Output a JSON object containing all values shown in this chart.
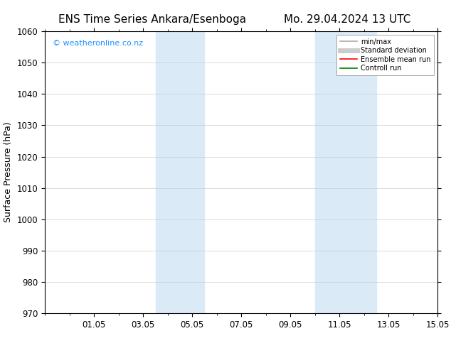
{
  "title_left": "ENS Time Series Ankara/Esenboga",
  "title_right": "Mo. 29.04.2024 13 UTC",
  "ylabel": "Surface Pressure (hPa)",
  "ylim": [
    970,
    1060
  ],
  "yticks": [
    970,
    980,
    990,
    1000,
    1010,
    1020,
    1030,
    1040,
    1050,
    1060
  ],
  "xlim": [
    0,
    16
  ],
  "xtick_labels": [
    "01.05",
    "03.05",
    "05.05",
    "07.05",
    "09.05",
    "11.05",
    "13.05",
    "15.05"
  ],
  "xtick_positions": [
    2,
    4,
    6,
    8,
    10,
    12,
    14,
    16
  ],
  "shaded_bands": [
    {
      "x_start": 4.5,
      "x_end": 6.5
    },
    {
      "x_start": 11.0,
      "x_end": 13.5
    }
  ],
  "shaded_color": "#daeaf6",
  "background_color": "#ffffff",
  "watermark_text": "© weatheronline.co.nz",
  "watermark_color": "#1E90FF",
  "legend_entries": [
    {
      "label": "min/max",
      "color": "#aaaaaa",
      "lw": 1.2,
      "style": "solid"
    },
    {
      "label": "Standard deviation",
      "color": "#cccccc",
      "lw": 5,
      "style": "solid"
    },
    {
      "label": "Ensemble mean run",
      "color": "#ff0000",
      "lw": 1.2,
      "style": "solid"
    },
    {
      "label": "Controll run",
      "color": "#008000",
      "lw": 1.2,
      "style": "solid"
    }
  ],
  "title_fontsize": 11,
  "axis_fontsize": 9,
  "tick_fontsize": 8.5,
  "watermark_fontsize": 8
}
